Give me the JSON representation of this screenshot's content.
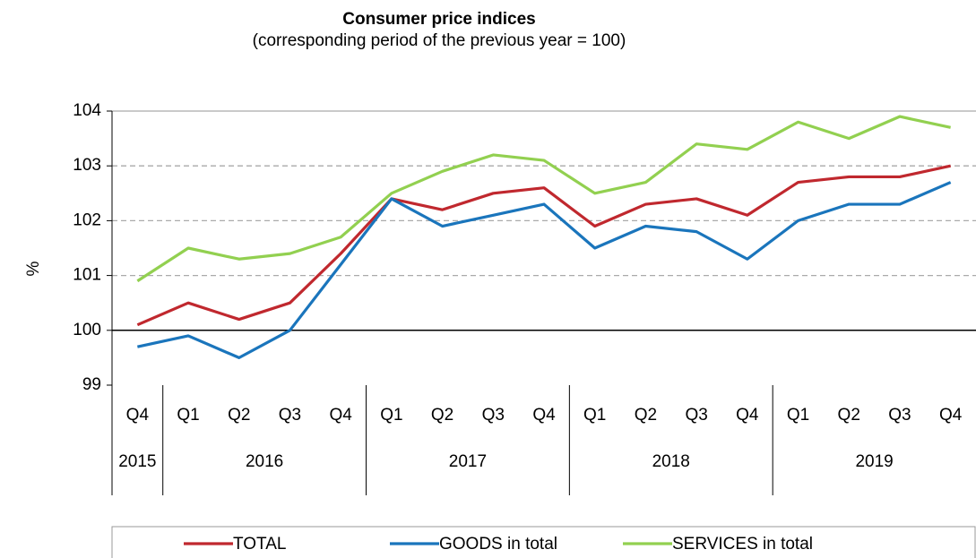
{
  "chart_data": {
    "type": "line",
    "title": "Consumer price indices",
    "subtitle": "(corresponding  period of the previous  year = 100)",
    "y_label": "%",
    "categories": [
      "Q4",
      "Q1",
      "Q2",
      "Q3",
      "Q4",
      "Q1",
      "Q2",
      "Q3",
      "Q4",
      "Q1",
      "Q2",
      "Q3",
      "Q4",
      "Q1",
      "Q2",
      "Q3",
      "Q4"
    ],
    "years": [
      {
        "label": "2015",
        "span": 1
      },
      {
        "label": "2016",
        "span": 4
      },
      {
        "label": "2017",
        "span": 4
      },
      {
        "label": "2018",
        "span": 4
      },
      {
        "label": "2019",
        "span": 4
      }
    ],
    "series": [
      {
        "name": "TOTAL",
        "color": "#c0282e",
        "values": [
          100.1,
          100.5,
          100.2,
          100.5,
          101.4,
          102.4,
          102.2,
          102.5,
          102.6,
          101.9,
          102.3,
          102.4,
          102.1,
          102.7,
          102.8,
          102.8,
          103.0
        ]
      },
      {
        "name": "GOODS in total",
        "color": "#1a75bc",
        "values": [
          99.7,
          99.9,
          99.5,
          100.0,
          101.2,
          102.4,
          101.9,
          102.1,
          102.3,
          101.5,
          101.9,
          101.8,
          101.3,
          102.0,
          102.3,
          102.3,
          102.7
        ]
      },
      {
        "name": "SERVICES in total",
        "color": "#92d050",
        "values": [
          100.9,
          101.5,
          101.3,
          101.4,
          101.7,
          102.5,
          102.9,
          103.2,
          103.1,
          102.5,
          102.7,
          103.4,
          103.3,
          103.8,
          103.5,
          103.9,
          103.7
        ]
      }
    ],
    "ylim": [
      99,
      104
    ],
    "yticks": [
      99,
      100,
      101,
      102,
      103,
      104
    ],
    "grid": true,
    "reference_line": 100,
    "legend": "bottom"
  }
}
